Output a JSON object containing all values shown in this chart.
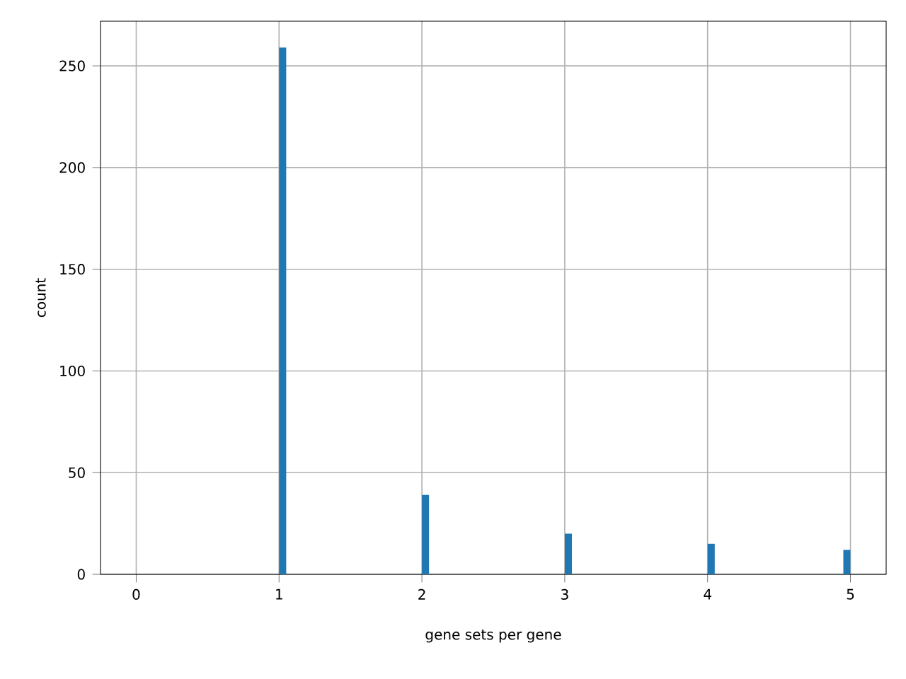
{
  "chart_data": {
    "type": "histogram",
    "xlabel": "gene sets per gene",
    "ylabel": "count",
    "bins": [
      1,
      1.05,
      2,
      2.05,
      3,
      3.05,
      4,
      4.05,
      4.95,
      5
    ],
    "values": [
      259,
      0,
      39,
      0,
      20,
      0,
      15,
      0,
      12
    ],
    "color": "#1f77b4",
    "xlim": [
      -0.25,
      5.25
    ],
    "xticks": [
      0,
      1,
      2,
      3,
      4,
      5
    ],
    "ylim": [
      0,
      271.95
    ],
    "yticks": [
      0,
      50,
      100,
      150,
      200,
      250
    ],
    "grid": true
  }
}
